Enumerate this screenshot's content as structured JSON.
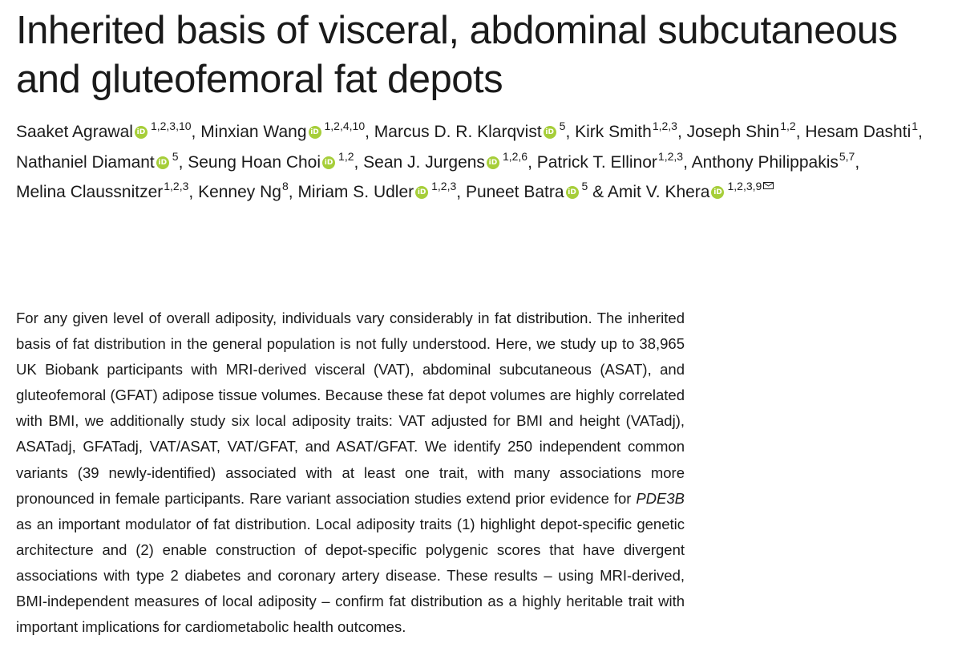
{
  "title": "Inherited basis of visceral, abdominal subcutaneous and gluteofemoral fat depots",
  "authors": [
    {
      "name": "Saaket Agrawal",
      "orcid": true,
      "affil": "1,2,3,10",
      "sep": ", "
    },
    {
      "name": "Minxian Wang",
      "orcid": true,
      "affil": "1,2,4,10",
      "sep": ", "
    },
    {
      "name": "Marcus D. R. Klarqvist",
      "orcid": true,
      "affil": "5",
      "sep": ", "
    },
    {
      "name": "Kirk Smith",
      "orcid": false,
      "affil": "1,2,3",
      "sep": ", "
    },
    {
      "name": "Joseph Shin",
      "orcid": false,
      "affil": "1,2",
      "sep": ", "
    },
    {
      "name": "Hesam Dashti",
      "orcid": false,
      "affil": "1",
      "sep": ", "
    },
    {
      "name": "Nathaniel Diamant",
      "orcid": true,
      "affil": "5",
      "sep": ", "
    },
    {
      "name": "Seung Hoan Choi",
      "orcid": true,
      "affil": "1,2",
      "sep": ", "
    },
    {
      "name": "Sean J. Jurgens",
      "orcid": true,
      "affil": "1,2,6",
      "sep": ", "
    },
    {
      "name": "Patrick T. Ellinor",
      "orcid": false,
      "affil": "1,2,3",
      "sep": ", "
    },
    {
      "name": "Anthony Philippakis",
      "orcid": false,
      "affil": "5,7",
      "sep": ", "
    },
    {
      "name": "Melina Claussnitzer",
      "orcid": false,
      "affil": "1,2,3",
      "sep": ", "
    },
    {
      "name": "Kenney Ng",
      "orcid": false,
      "affil": "8",
      "sep": ", "
    },
    {
      "name": "Miriam S. Udler",
      "orcid": true,
      "affil": "1,2,3",
      "sep": ", "
    },
    {
      "name": "Puneet Batra",
      "orcid": true,
      "affil": "5",
      "sep": " & "
    },
    {
      "name": "Amit V. Khera",
      "orcid": true,
      "affil": "1,2,3,9",
      "sep": "",
      "corresponding": true
    }
  ],
  "abstract": {
    "before_italic": "For any given level of overall adiposity, individuals vary considerably in fat distribution. The inherited basis of fat distribution in the general population is not fully understood. Here, we study up to 38,965 UK Biobank participants with MRI-derived visceral (VAT), abdominal subcutaneous (ASAT), and gluteofemoral (GFAT) adipose tissue volumes. Because these fat depot volumes are highly correlated with BMI, we additionally study six local adiposity traits: VAT adjusted for BMI and height (VATadj), ASATadj, GFATadj, VAT/ASAT, VAT/GFAT, and ASAT/GFAT. We identify 250 independent common variants (39 newly-identified) associated with at least one trait, with many associations more pronounced in female par­ticipants. Rare variant association studies extend prior evidence for ",
    "italic": "PDE3B",
    "after_italic": " as an important modulator of fat distribution. Local adiposity traits (1) highlight depot-specific genetic architecture and (2) enable construction of depot-specific polygenic scores that have divergent associations with type 2 diabetes and coronary artery disease. These results – using MRI-derived, BMI-independent measures of local adiposity – confirm fat distribution as a highly heritable trait with important implications for cardiometabolic health outcomes."
  },
  "colors": {
    "orcid": "#a6ce39",
    "text": "#1a1a1a"
  },
  "icons": {
    "orcid": "orcid-icon",
    "corresponding": "envelope-icon"
  }
}
